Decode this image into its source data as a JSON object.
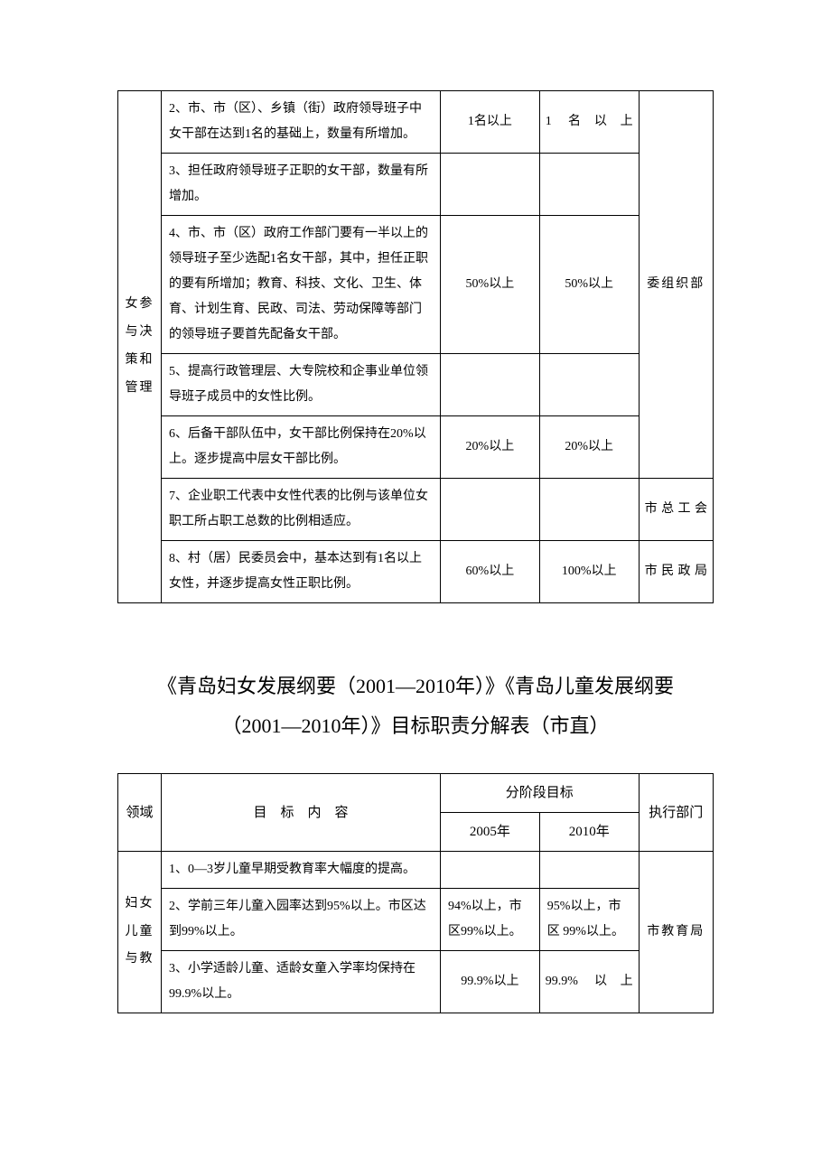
{
  "table1": {
    "domain_label": "女参与决策和管理",
    "dept1": "委组织部",
    "dept2": "市总工会",
    "dept3": "市民政局",
    "rows": [
      {
        "content": "2、市、市（区）、乡镇（街）政府领导班子中女干部在达到1名的基础上，数量有所增加。",
        "y2005": "1名以上",
        "y2010": "1 名以上"
      },
      {
        "content": "3、担任政府领导班子正职的女干部，数量有所增加。",
        "y2005": "",
        "y2010": ""
      },
      {
        "content": "4、市、市（区）政府工作部门要有一半以上的领导班子至少选配1名女干部，其中，担任正职的要有所增加；教育、科技、文化、卫生、体育、计划生育、民政、司法、劳动保障等部门的领导班子要首先配备女干部。",
        "y2005": "50%以上",
        "y2010": "50%以上"
      },
      {
        "content": "5、提高行政管理层、大专院校和企事业单位领导班子成员中的女性比例。",
        "y2005": "",
        "y2010": ""
      },
      {
        "content": "6、后备干部队伍中，女干部比例保持在20%以上。逐步提高中层女干部比例。",
        "y2005": "20%以上",
        "y2010": "20%以上"
      },
      {
        "content": "7、企业职工代表中女性代表的比例与该单位女职工所占职工总数的比例相适应。",
        "y2005": "",
        "y2010": ""
      },
      {
        "content": "8、村（居）民委员会中，基本达到有1名以上女性，并逐步提高女性正职比例。",
        "y2005": "60%以上",
        "y2010": "100%以上"
      }
    ]
  },
  "section_title": {
    "line1": "《青岛妇女发展纲要（2001—2010年）》《青岛儿童发展纲要",
    "line2": "（2001—2010年）》目标职责分解表（市直）"
  },
  "table2": {
    "header": {
      "domain": "领域",
      "content": "目　标　内　容",
      "stage": "分阶段目标",
      "y2005": "2005年",
      "y2010": "2010年",
      "dept": "执行部门"
    },
    "domain_label": "妇女儿童与教",
    "dept": "市教育局",
    "rows": [
      {
        "content": "1、0—3岁儿童早期受教育率大幅度的提高。",
        "y2005": "",
        "y2010": ""
      },
      {
        "content": "2、学前三年儿童入园率达到95%以上。市区达到99%以上。",
        "y2005": "94%以上，市区99%以上。",
        "y2010": "95%以上，市区 99%以上。"
      },
      {
        "content": "3、小学适龄儿童、适龄女童入学率均保持在99.9%以上。",
        "y2005": "99.9%以上",
        "y2010": "99.9% 以上"
      }
    ]
  },
  "colors": {
    "border": "#000000",
    "background": "#ffffff",
    "text": "#000000"
  }
}
